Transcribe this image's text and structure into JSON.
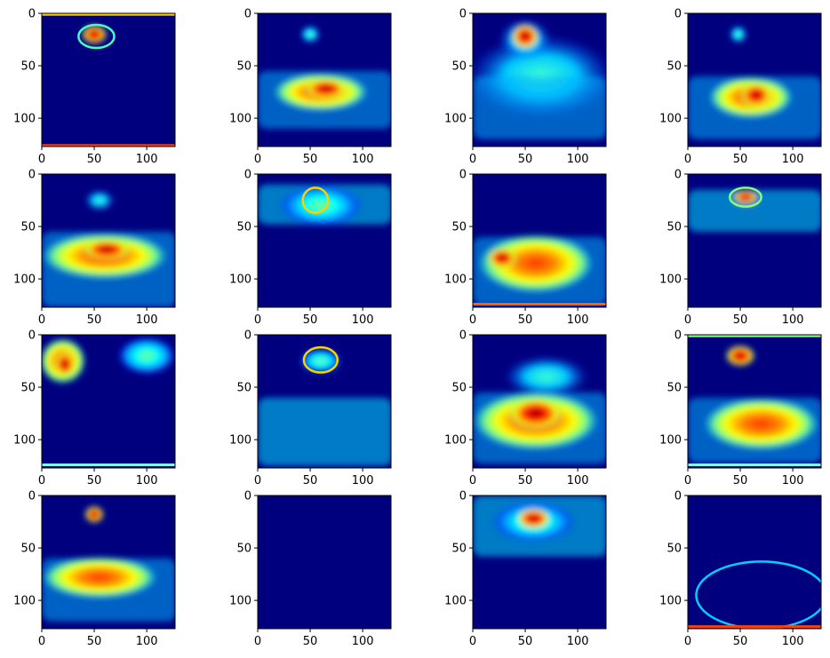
{
  "chart_data": {
    "type": "heatmap",
    "grid": {
      "rows": 4,
      "cols": 4
    },
    "colormap": "jet",
    "colormap_stops": [
      "#00007f",
      "#0000ff",
      "#007fff",
      "#00ffff",
      "#7fff7f",
      "#ffff00",
      "#ff7f00",
      "#ff0000",
      "#7f0000"
    ],
    "image_size": [
      128,
      128
    ],
    "xlim": [
      0,
      127
    ],
    "ylim": [
      127,
      0
    ],
    "xticks": [
      0,
      50,
      100
    ],
    "yticks": [
      0,
      50,
      100
    ],
    "xtick_labels": [
      "0",
      "50",
      "100"
    ],
    "ytick_labels": [
      "0",
      "50",
      "100"
    ],
    "panels": [
      {
        "row": 0,
        "col": 0,
        "description": "small hot blob near top center, dark background, thin bright border lines at top and bottom"
      },
      {
        "row": 0,
        "col": 1,
        "description": "small blob at top center, large warm band across middle-lower area"
      },
      {
        "row": 0,
        "col": 2,
        "description": "hot blob at top center, cyan glow around, broad cool band below"
      },
      {
        "row": 0,
        "col": 3,
        "description": "small blob at top center, warm band across middle-lower area"
      },
      {
        "row": 1,
        "col": 0,
        "description": "faint blob at top, large orange band in lower half"
      },
      {
        "row": 1,
        "col": 1,
        "description": "outlined blob at top, cyan band across upper third"
      },
      {
        "row": 1,
        "col": 2,
        "description": "warm band lower half, hot spot left"
      },
      {
        "row": 1,
        "col": 3,
        "description": "small hot blob top, cyan haze upper third"
      },
      {
        "row": 2,
        "col": 0,
        "description": "warm region top left, cyan region top right"
      },
      {
        "row": 2,
        "col": 1,
        "description": "bright outlined blob at top, cyan textured band lower"
      },
      {
        "row": 2,
        "col": 2,
        "description": "large orange-red band in lower half"
      },
      {
        "row": 2,
        "col": 3,
        "description": "hot blob at top center, green-yellow band lower"
      },
      {
        "row": 3,
        "col": 0,
        "description": "small hot blob top, orange band lower"
      },
      {
        "row": 3,
        "col": 1,
        "description": "uniform dark blue, empty activation"
      },
      {
        "row": 3,
        "col": 2,
        "description": "hot blob at top center, cyan band upper third"
      },
      {
        "row": 3,
        "col": 3,
        "description": "faint cyan outline band lower half, bright line at bottom"
      }
    ]
  }
}
